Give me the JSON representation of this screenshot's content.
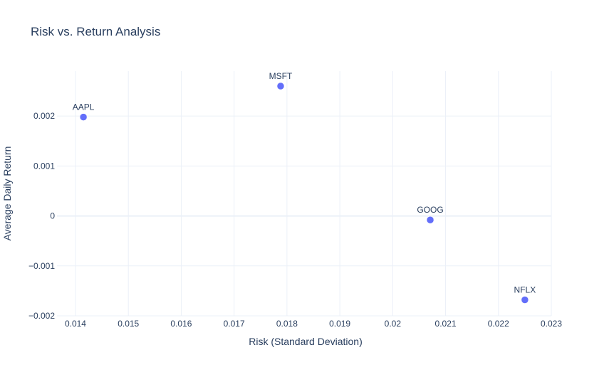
{
  "chart_data": {
    "type": "scatter",
    "title": "Risk vs. Return Analysis",
    "xlabel": "Risk (Standard Deviation)",
    "ylabel": "Average Daily Return",
    "xlim": [
      0.01365,
      0.023
    ],
    "ylim": [
      -0.002,
      0.0029
    ],
    "x_ticks": [
      0.014,
      0.015,
      0.016,
      0.017,
      0.018,
      0.019,
      0.02,
      0.021,
      0.022,
      0.023
    ],
    "x_tick_labels": [
      "0.014",
      "0.015",
      "0.016",
      "0.017",
      "0.018",
      "0.019",
      "0.02",
      "0.021",
      "0.022",
      "0.023"
    ],
    "y_ticks": [
      -0.002,
      -0.001,
      0,
      0.001,
      0.002
    ],
    "y_tick_labels": [
      "−0.002",
      "−0.001",
      "0",
      "0.001",
      "0.002"
    ],
    "grid": true,
    "points": [
      {
        "label": "AAPL",
        "x": 0.01415,
        "y": 0.00198
      },
      {
        "label": "MSFT",
        "x": 0.01788,
        "y": 0.0026
      },
      {
        "label": "GOOG",
        "x": 0.02071,
        "y": -8e-05
      },
      {
        "label": "NFLX",
        "x": 0.0225,
        "y": -0.00168
      }
    ],
    "colors": {
      "marker": "#636efa",
      "grid": "#ebf0f8",
      "zeroline": "#ebf0f8",
      "text": "#2a3f5f",
      "tick_text": "#2a3f5f"
    }
  }
}
